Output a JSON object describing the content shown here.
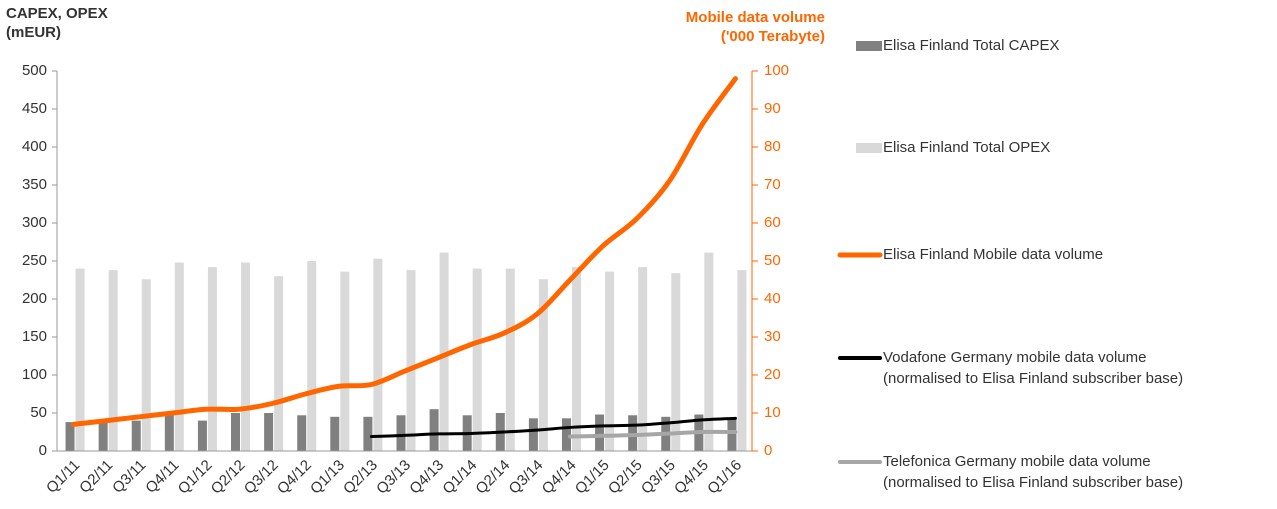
{
  "chart_data": {
    "type": "bar",
    "y_label": "CAPEX, OPEX\n(mEUR)",
    "y2_label": "Mobile data volume\n('000 Terabyte)",
    "categories": [
      "Q1/11",
      "Q2/11",
      "Q3/11",
      "Q4/11",
      "Q1/12",
      "Q2/12",
      "Q3/12",
      "Q4/12",
      "Q1/13",
      "Q2/13",
      "Q3/13",
      "Q4/13",
      "Q1/14",
      "Q2/14",
      "Q3/14",
      "Q4/14",
      "Q1/15",
      "Q2/15",
      "Q3/15",
      "Q4/15",
      "Q1/16"
    ],
    "series": [
      {
        "name": "Elisa Finland Total CAPEX",
        "type": "bar",
        "color": "#808080",
        "values": [
          38,
          40,
          40,
          47,
          40,
          50,
          50,
          47,
          45,
          45,
          47,
          55,
          47,
          50,
          43,
          43,
          48,
          47,
          45,
          48,
          42
        ]
      },
      {
        "name": "Elisa Finland Total OPEX",
        "type": "bar",
        "color": "#d9d9d9",
        "values": [
          240,
          238,
          226,
          248,
          242,
          248,
          230,
          250,
          236,
          253,
          238,
          261,
          240,
          240,
          226,
          242,
          236,
          242,
          234,
          261,
          238
        ]
      },
      {
        "name": "Elisa Finland Mobile data volume",
        "type": "line",
        "axis": "y2",
        "color": "#ff6600",
        "values": [
          7,
          8,
          9,
          10,
          11,
          11,
          12.5,
          15,
          17,
          17.5,
          21,
          24.5,
          28,
          31,
          36,
          45,
          54,
          61,
          71,
          86,
          98
        ]
      },
      {
        "name": "Vodafone Germany mobile data volume\n(normalised to Elisa Finland subscriber base)",
        "type": "line",
        "axis": "y2",
        "color": "#000000",
        "values": [
          null,
          null,
          null,
          null,
          null,
          null,
          null,
          null,
          null,
          3.8,
          4.1,
          4.5,
          4.6,
          5.0,
          5.5,
          6.2,
          6.6,
          6.8,
          7.4,
          8.2,
          8.6
        ]
      },
      {
        "name": "Telefonica Germany mobile data volume\n(normalised to Elisa Finland subscriber base)",
        "type": "line",
        "axis": "y2",
        "color": "#a6a6a6",
        "values": [
          null,
          null,
          null,
          null,
          null,
          null,
          null,
          null,
          null,
          null,
          null,
          null,
          null,
          null,
          null,
          3.8,
          4.0,
          4.2,
          4.6,
          5.0,
          5.0
        ]
      }
    ],
    "ylim": [
      0,
      500
    ],
    "yticks": [
      0,
      50,
      100,
      150,
      200,
      250,
      300,
      350,
      400,
      450,
      500
    ],
    "y2lim": [
      0,
      100
    ],
    "y2ticks": [
      0,
      10,
      20,
      30,
      40,
      50,
      60,
      70,
      80,
      90,
      100
    ],
    "y2_color": "#ff6600"
  }
}
